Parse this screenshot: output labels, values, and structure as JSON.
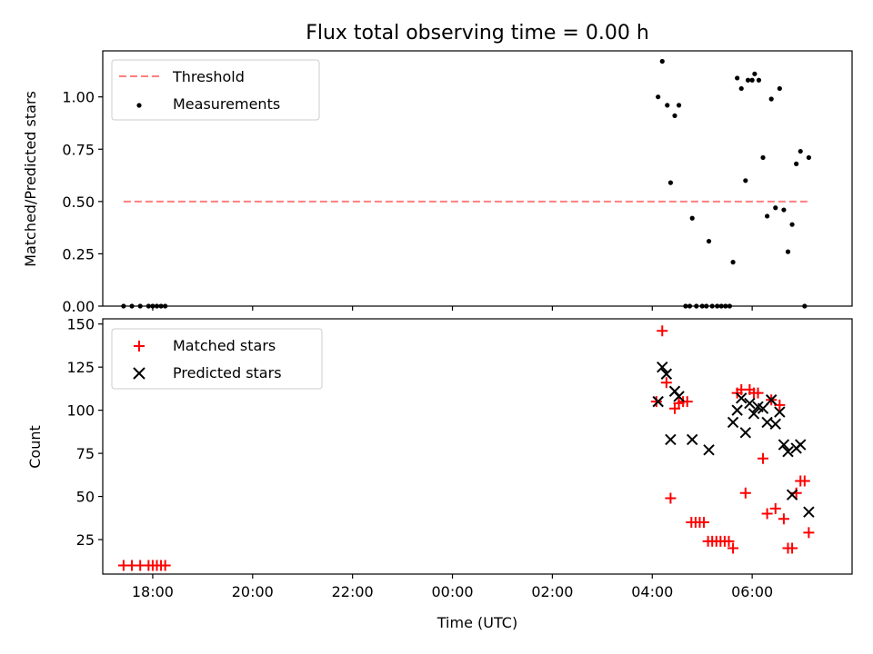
{
  "chart_data": [
    {
      "type": "scatter",
      "title": "Flux total observing time = 0.00 h",
      "xlabel": "",
      "ylabel": "Matched/Predicted stars",
      "xlim": [
        "17:00",
        "08:00"
      ],
      "ylim": [
        0,
        1.22
      ],
      "yticks": [
        0.0,
        0.25,
        0.5,
        0.75,
        1.0
      ],
      "ytick_labels": [
        "0.00",
        "0.25",
        "0.50",
        "0.75",
        "1.00"
      ],
      "grid": false,
      "legend": "top-left",
      "threshold": {
        "name": "Threshold",
        "y": 0.5,
        "x_range": [
          "17:25",
          "07:10"
        ],
        "color": "#ff7f7f"
      },
      "series": [
        {
          "name": "Measurements",
          "color": "#000000",
          "marker": "dot",
          "points": [
            [
              "17:25",
              0.0
            ],
            [
              "17:35",
              0.0
            ],
            [
              "17:45",
              0.0
            ],
            [
              "17:55",
              0.0
            ],
            [
              "18:00",
              0.0
            ],
            [
              "18:05",
              0.0
            ],
            [
              "18:10",
              0.0
            ],
            [
              "18:15",
              0.0
            ],
            [
              "04:07",
              1.0
            ],
            [
              "04:12",
              1.17
            ],
            [
              "04:18",
              0.96
            ],
            [
              "04:22",
              0.59
            ],
            [
              "04:27",
              0.91
            ],
            [
              "04:32",
              0.96
            ],
            [
              "04:40",
              0.0
            ],
            [
              "04:45",
              0.0
            ],
            [
              "04:48",
              0.42
            ],
            [
              "04:53",
              0.0
            ],
            [
              "05:00",
              0.0
            ],
            [
              "05:05",
              0.0
            ],
            [
              "05:08",
              0.31
            ],
            [
              "05:12",
              0.0
            ],
            [
              "05:18",
              0.0
            ],
            [
              "05:23",
              0.0
            ],
            [
              "05:28",
              0.0
            ],
            [
              "05:33",
              0.0
            ],
            [
              "05:37",
              0.21
            ],
            [
              "05:42",
              1.09
            ],
            [
              "05:47",
              1.04
            ],
            [
              "05:52",
              0.6
            ],
            [
              "05:55",
              1.08
            ],
            [
              "06:00",
              1.08
            ],
            [
              "06:03",
              1.11
            ],
            [
              "06:08",
              1.08
            ],
            [
              "06:13",
              0.71
            ],
            [
              "06:18",
              0.43
            ],
            [
              "06:23",
              0.99
            ],
            [
              "06:28",
              0.47
            ],
            [
              "06:33",
              1.04
            ],
            [
              "06:38",
              0.46
            ],
            [
              "06:43",
              0.26
            ],
            [
              "06:48",
              0.39
            ],
            [
              "06:53",
              0.68
            ],
            [
              "06:58",
              0.74
            ],
            [
              "07:03",
              0.0
            ],
            [
              "07:08",
              0.71
            ]
          ]
        }
      ]
    },
    {
      "type": "scatter",
      "title": "",
      "xlabel": "Time (UTC)",
      "ylabel": "Count",
      "xlim": [
        "17:00",
        "08:00"
      ],
      "ylim": [
        5,
        153
      ],
      "xticks": [
        "18:00",
        "20:00",
        "22:00",
        "00:00",
        "02:00",
        "04:00",
        "06:00"
      ],
      "yticks": [
        25,
        50,
        75,
        100,
        125,
        150
      ],
      "grid": false,
      "legend": "top-left",
      "series": [
        {
          "name": "Matched stars",
          "color": "#ff0000",
          "marker": "plus",
          "points": [
            [
              "17:25",
              10
            ],
            [
              "17:35",
              10
            ],
            [
              "17:45",
              10
            ],
            [
              "17:55",
              10
            ],
            [
              "18:00",
              10
            ],
            [
              "18:05",
              10
            ],
            [
              "18:10",
              10
            ],
            [
              "18:15",
              10
            ],
            [
              "04:05",
              105
            ],
            [
              "04:12",
              146
            ],
            [
              "04:17",
              116
            ],
            [
              "04:22",
              49
            ],
            [
              "04:27",
              101
            ],
            [
              "04:32",
              104
            ],
            [
              "04:37",
              105
            ],
            [
              "04:42",
              105
            ],
            [
              "04:47",
              35
            ],
            [
              "04:52",
              35
            ],
            [
              "04:57",
              35
            ],
            [
              "05:02",
              35
            ],
            [
              "05:07",
              24
            ],
            [
              "05:12",
              24
            ],
            [
              "05:17",
              24
            ],
            [
              "05:22",
              24
            ],
            [
              "05:27",
              24
            ],
            [
              "05:32",
              24
            ],
            [
              "05:37",
              20
            ],
            [
              "05:42",
              110
            ],
            [
              "05:47",
              112
            ],
            [
              "05:52",
              52
            ],
            [
              "05:57",
              112
            ],
            [
              "06:02",
              110
            ],
            [
              "06:07",
              110
            ],
            [
              "06:13",
              72
            ],
            [
              "06:18",
              40
            ],
            [
              "06:23",
              106
            ],
            [
              "06:28",
              43
            ],
            [
              "06:33",
              103
            ],
            [
              "06:38",
              37
            ],
            [
              "06:43",
              20
            ],
            [
              "06:48",
              20
            ],
            [
              "06:53",
              52
            ],
            [
              "06:58",
              59
            ],
            [
              "07:03",
              59
            ],
            [
              "07:08",
              29
            ]
          ]
        },
        {
          "name": "Predicted stars",
          "color": "#000000",
          "marker": "x",
          "points": [
            [
              "04:07",
              105
            ],
            [
              "04:12",
              125
            ],
            [
              "04:17",
              121
            ],
            [
              "04:22",
              83
            ],
            [
              "04:27",
              111
            ],
            [
              "04:32",
              108
            ],
            [
              "04:48",
              83
            ],
            [
              "05:08",
              77
            ],
            [
              "05:37",
              93
            ],
            [
              "05:42",
              100
            ],
            [
              "05:47",
              107
            ],
            [
              "05:52",
              87
            ],
            [
              "05:57",
              104
            ],
            [
              "06:02",
              98
            ],
            [
              "06:07",
              102
            ],
            [
              "06:13",
              101
            ],
            [
              "06:18",
              93
            ],
            [
              "06:23",
              106
            ],
            [
              "06:28",
              92
            ],
            [
              "06:33",
              99
            ],
            [
              "06:38",
              80
            ],
            [
              "06:43",
              76
            ],
            [
              "06:48",
              51
            ],
            [
              "06:53",
              78
            ],
            [
              "06:58",
              80
            ],
            [
              "07:08",
              41
            ]
          ]
        }
      ]
    }
  ]
}
